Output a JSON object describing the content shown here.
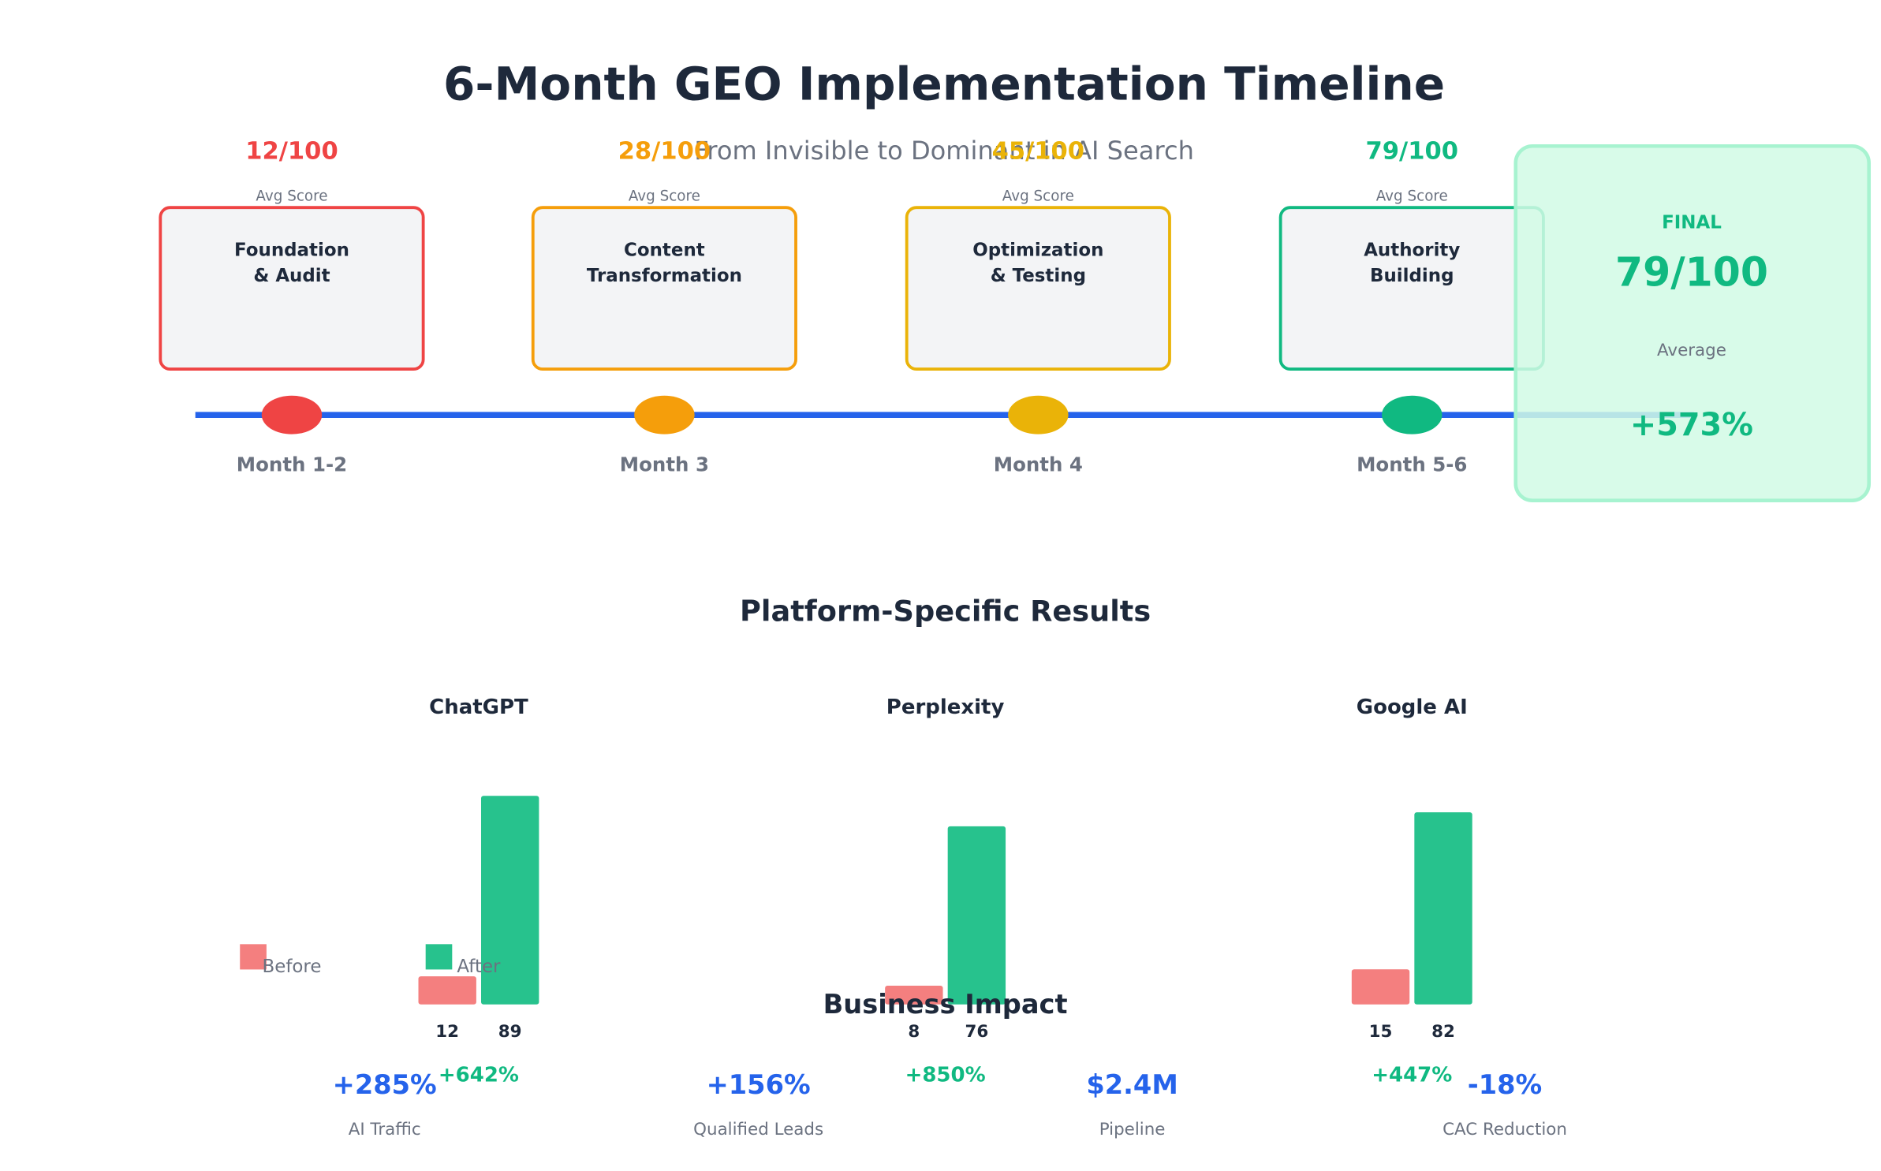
{
  "header": {
    "title": "6-Month GEO Implementation Timeline",
    "subtitle": "From Invisible to Dominant in AI Search"
  },
  "timeline": {
    "phases": [
      {
        "score": "12/100",
        "score_label": "Avg Score",
        "name": [
          "Foundation",
          "& Audit"
        ],
        "period": "Month 1-2",
        "color": "#ef4444"
      },
      {
        "score": "28/100",
        "score_label": "Avg Score",
        "name": [
          "Content",
          "Transformation"
        ],
        "period": "Month 3",
        "color": "#f59e0b"
      },
      {
        "score": "45/100",
        "score_label": "Avg Score",
        "name": [
          "Optimization",
          "& Testing"
        ],
        "period": "Month 4",
        "color": "#eab308"
      },
      {
        "score": "79/100",
        "score_label": "Avg Score",
        "name": [
          "Authority",
          "Building"
        ],
        "period": "Month 5-6",
        "color": "#10b981"
      }
    ],
    "final": {
      "label": "FINAL",
      "score": "79/100",
      "score_label": "Average",
      "change": "+573%"
    }
  },
  "chart_data": {
    "type": "bar",
    "title": "Platform-Specific Results",
    "categories": [
      "ChatGPT",
      "Perplexity",
      "Google AI"
    ],
    "series": [
      {
        "name": "Before",
        "color": "#f47f7f",
        "values": [
          12,
          8,
          15
        ]
      },
      {
        "name": "After",
        "color": "#27c28d",
        "values": [
          89,
          76,
          82
        ]
      }
    ],
    "changes": [
      "+642%",
      "+850%",
      "+447%"
    ]
  },
  "impact": {
    "title": "Business Impact",
    "metrics": [
      {
        "value": "+285%",
        "label": "AI Traffic"
      },
      {
        "value": "+156%",
        "label": "Qualified Leads"
      },
      {
        "value": "$2.4M",
        "label": "Pipeline"
      },
      {
        "value": "-18%",
        "label": "CAC Reduction"
      }
    ]
  }
}
